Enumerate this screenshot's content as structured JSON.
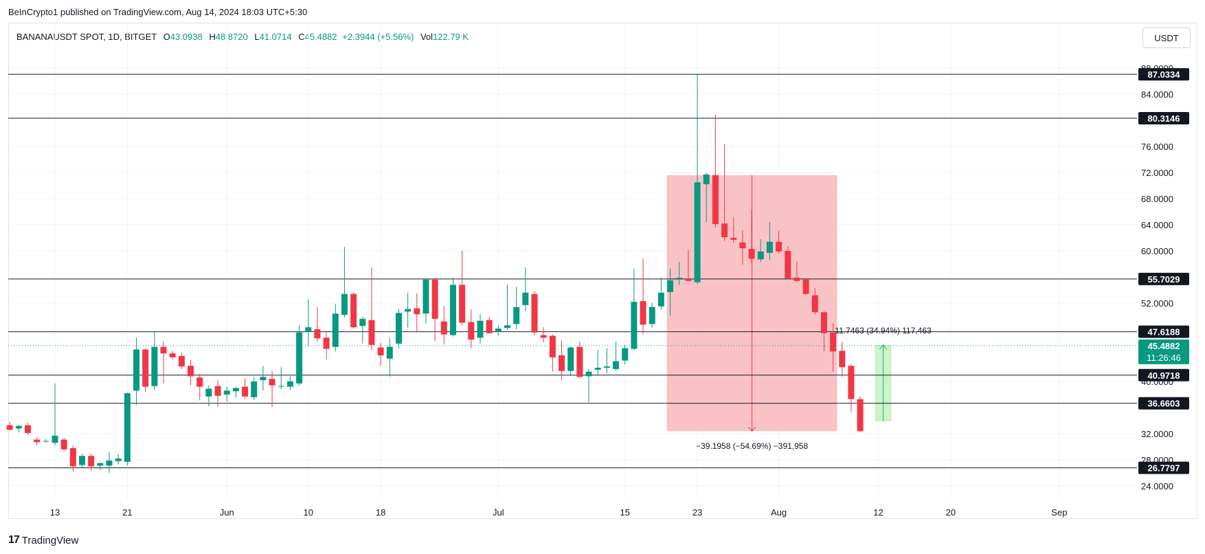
{
  "header": {
    "publisher": "BeInCrypto1 published on TradingView.com, Aug 14, 2024 18:03 UTC+5:30"
  },
  "legend": {
    "symbol": "BANANAUSDT SPOT, 1D, BITGET",
    "open_label": "O",
    "open": "43.0938",
    "high_label": "H",
    "high": "48.8720",
    "low_label": "L",
    "low": "41.0714",
    "close_label": "C",
    "close": "45.4882",
    "change": "+2.3944 (+5.56%)",
    "vol_label": "Vol",
    "vol": "122.79 K"
  },
  "currency_button": "USDT",
  "branding": {
    "logo": "17",
    "name": "TradingView"
  },
  "colors": {
    "up": "#089981",
    "down": "#f23645",
    "grid": "#f0f3fa",
    "level": "#131722",
    "short_zone": "#f7a9ae",
    "long_zone": "#b9f0b4"
  },
  "chart_data": {
    "type": "candlestick",
    "ylim": [
      22,
      90
    ],
    "y_ticks": [
      {
        "v": 88.0,
        "label": "88.0000"
      },
      {
        "v": 84,
        "label": "84.0000"
      },
      {
        "v": 76,
        "label": "76.0000"
      },
      {
        "v": 72,
        "label": "72.0000"
      },
      {
        "v": 68,
        "label": "68.0000"
      },
      {
        "v": 64,
        "label": "64.0000"
      },
      {
        "v": 60,
        "label": "60.0000"
      },
      {
        "v": 52,
        "label": "52.0000"
      },
      {
        "v": 40,
        "label": "40.0000"
      },
      {
        "v": 32,
        "label": "32.0000"
      },
      {
        "v": 28,
        "label": "28.0000"
      },
      {
        "v": 24,
        "label": "24.0000"
      }
    ],
    "x_ticks": [
      {
        "date": "2024-05-13",
        "label": "13"
      },
      {
        "date": "2024-05-21",
        "label": "21"
      },
      {
        "date": "2024-06-01",
        "label": "Jun"
      },
      {
        "date": "2024-06-10",
        "label": "10"
      },
      {
        "date": "2024-06-18",
        "label": "18"
      },
      {
        "date": "2024-07-01",
        "label": "Jul"
      },
      {
        "date": "2024-07-15",
        "label": "15"
      },
      {
        "date": "2024-07-23",
        "label": "23"
      },
      {
        "date": "2024-08-01",
        "label": "Aug"
      },
      {
        "date": "2024-08-12",
        "label": "12"
      },
      {
        "date": "2024-08-20",
        "label": "20"
      },
      {
        "date": "2024-09-01",
        "label": "Sep"
      }
    ],
    "levels": [
      {
        "price": 87.0334,
        "label": "87.0334"
      },
      {
        "price": 80.3146,
        "label": "80.3146"
      },
      {
        "price": 55.7029,
        "label": "55.7029"
      },
      {
        "price": 47.6188,
        "label": "47.6188"
      },
      {
        "price": 40.9718,
        "label": "40.9718"
      },
      {
        "price": 36.6603,
        "label": "36.6603"
      },
      {
        "price": 26.7797,
        "label": "26.7797"
      }
    ],
    "current_price": {
      "price": 45.4882,
      "label": "45.4882",
      "countdown": "11:26:46"
    },
    "short_measure": {
      "start": "2024-07-20",
      "end": "2024-08-07",
      "top": 71.6,
      "bottom": 32.4,
      "text": "−39.1958 (−54.69%) −391,958"
    },
    "long_measure": {
      "start": "2024-08-12",
      "end": "2024-08-13",
      "bottom": 33.9,
      "top": 45.6,
      "text": "11.7463 (34.94%) 117,463"
    },
    "candles": [
      {
        "d": "2024-05-08",
        "o": 33.3,
        "h": 33.8,
        "l": 32.5,
        "c": 32.6
      },
      {
        "d": "2024-05-09",
        "o": 32.8,
        "h": 33.3,
        "l": 32.2,
        "c": 33.2
      },
      {
        "d": "2024-05-10",
        "o": 33.3,
        "h": 33.7,
        "l": 31.8,
        "c": 32.1
      },
      {
        "d": "2024-05-11",
        "o": 31.1,
        "h": 31.5,
        "l": 30.2,
        "c": 30.7
      },
      {
        "d": "2024-05-12",
        "o": 30.8,
        "h": 31.2,
        "l": 30.6,
        "c": 30.9
      },
      {
        "d": "2024-05-13",
        "o": 30.6,
        "h": 39.7,
        "l": 30.2,
        "c": 31.7
      },
      {
        "d": "2024-05-14",
        "o": 31.1,
        "h": 31.3,
        "l": 29.3,
        "c": 29.6
      },
      {
        "d": "2024-05-15",
        "o": 29.8,
        "h": 30.2,
        "l": 26.2,
        "c": 27.0
      },
      {
        "d": "2024-05-16",
        "o": 27.2,
        "h": 28.9,
        "l": 26.8,
        "c": 28.6
      },
      {
        "d": "2024-05-17",
        "o": 28.6,
        "h": 28.9,
        "l": 26.3,
        "c": 27.0
      },
      {
        "d": "2024-05-18",
        "o": 27.1,
        "h": 27.6,
        "l": 26.4,
        "c": 27.5
      },
      {
        "d": "2024-05-19",
        "o": 27.1,
        "h": 29.2,
        "l": 26.0,
        "c": 27.9
      },
      {
        "d": "2024-05-20",
        "o": 27.8,
        "h": 28.9,
        "l": 27.3,
        "c": 28.2
      },
      {
        "d": "2024-05-21",
        "o": 27.7,
        "h": 38.3,
        "l": 27.1,
        "c": 38.2
      },
      {
        "d": "2024-05-22",
        "o": 38.6,
        "h": 46.7,
        "l": 36.4,
        "c": 44.9
      },
      {
        "d": "2024-05-23",
        "o": 44.9,
        "h": 45.1,
        "l": 38.4,
        "c": 39.2
      },
      {
        "d": "2024-05-24",
        "o": 39.3,
        "h": 47.7,
        "l": 38.7,
        "c": 45.3
      },
      {
        "d": "2024-05-25",
        "o": 45.3,
        "h": 46.1,
        "l": 39.7,
        "c": 44.3
      },
      {
        "d": "2024-05-26",
        "o": 44.3,
        "h": 44.7,
        "l": 43.4,
        "c": 43.7
      },
      {
        "d": "2024-05-27",
        "o": 43.9,
        "h": 44.4,
        "l": 41.9,
        "c": 42.3
      },
      {
        "d": "2024-05-28",
        "o": 42.4,
        "h": 43.3,
        "l": 39.4,
        "c": 40.8
      },
      {
        "d": "2024-05-29",
        "o": 40.6,
        "h": 41.2,
        "l": 37.1,
        "c": 39.2
      },
      {
        "d": "2024-05-30",
        "o": 37.7,
        "h": 39.4,
        "l": 36.2,
        "c": 38.9
      },
      {
        "d": "2024-05-31",
        "o": 39.3,
        "h": 40.2,
        "l": 36.1,
        "c": 37.8
      },
      {
        "d": "2024-06-01",
        "o": 38.0,
        "h": 39.2,
        "l": 36.9,
        "c": 38.6
      },
      {
        "d": "2024-06-02",
        "o": 38.5,
        "h": 39.1,
        "l": 37.6,
        "c": 39.0
      },
      {
        "d": "2024-06-03",
        "o": 39.2,
        "h": 40.5,
        "l": 37.4,
        "c": 37.7
      },
      {
        "d": "2024-06-04",
        "o": 37.6,
        "h": 40.7,
        "l": 37.2,
        "c": 40.0
      },
      {
        "d": "2024-06-05",
        "o": 40.2,
        "h": 42.4,
        "l": 38.6,
        "c": 40.7
      },
      {
        "d": "2024-06-06",
        "o": 40.4,
        "h": 41.6,
        "l": 36.1,
        "c": 39.4
      },
      {
        "d": "2024-06-07",
        "o": 39.2,
        "h": 42.2,
        "l": 38.8,
        "c": 39.3
      },
      {
        "d": "2024-06-08",
        "o": 39.2,
        "h": 40.8,
        "l": 38.7,
        "c": 40.0
      },
      {
        "d": "2024-06-09",
        "o": 39.7,
        "h": 48.6,
        "l": 39.4,
        "c": 47.5
      },
      {
        "d": "2024-06-10",
        "o": 47.6,
        "h": 52.6,
        "l": 45.4,
        "c": 48.3
      },
      {
        "d": "2024-06-11",
        "o": 48.0,
        "h": 51.4,
        "l": 46.1,
        "c": 46.6
      },
      {
        "d": "2024-06-12",
        "o": 46.7,
        "h": 47.5,
        "l": 43.4,
        "c": 45.0
      },
      {
        "d": "2024-06-13",
        "o": 45.3,
        "h": 51.9,
        "l": 44.6,
        "c": 50.4
      },
      {
        "d": "2024-06-14",
        "o": 50.2,
        "h": 60.6,
        "l": 49.8,
        "c": 53.4
      },
      {
        "d": "2024-06-15",
        "o": 53.4,
        "h": 53.6,
        "l": 48.1,
        "c": 48.3
      },
      {
        "d": "2024-06-16",
        "o": 48.5,
        "h": 49.9,
        "l": 45.8,
        "c": 49.6
      },
      {
        "d": "2024-06-17",
        "o": 49.4,
        "h": 57.5,
        "l": 44.8,
        "c": 45.6
      },
      {
        "d": "2024-06-18",
        "o": 45.2,
        "h": 45.9,
        "l": 42.4,
        "c": 44.0
      },
      {
        "d": "2024-06-19",
        "o": 43.5,
        "h": 46.7,
        "l": 40.7,
        "c": 45.3
      },
      {
        "d": "2024-06-20",
        "o": 45.8,
        "h": 51.1,
        "l": 45.1,
        "c": 50.5
      },
      {
        "d": "2024-06-21",
        "o": 50.7,
        "h": 53.6,
        "l": 48.3,
        "c": 51.1
      },
      {
        "d": "2024-06-22",
        "o": 51.2,
        "h": 53.5,
        "l": 47.7,
        "c": 50.3
      },
      {
        "d": "2024-06-23",
        "o": 50.4,
        "h": 55.7,
        "l": 48.9,
        "c": 55.6
      },
      {
        "d": "2024-06-24",
        "o": 55.6,
        "h": 55.9,
        "l": 46.2,
        "c": 49.6
      },
      {
        "d": "2024-06-25",
        "o": 49.2,
        "h": 51.6,
        "l": 45.7,
        "c": 47.2
      },
      {
        "d": "2024-06-26",
        "o": 47.1,
        "h": 55.9,
        "l": 46.9,
        "c": 54.8
      },
      {
        "d": "2024-06-27",
        "o": 54.8,
        "h": 60.0,
        "l": 48.6,
        "c": 49.0
      },
      {
        "d": "2024-06-28",
        "o": 49.1,
        "h": 51.1,
        "l": 45.1,
        "c": 46.4
      },
      {
        "d": "2024-06-29",
        "o": 46.7,
        "h": 50.3,
        "l": 45.8,
        "c": 49.3
      },
      {
        "d": "2024-06-30",
        "o": 49.4,
        "h": 49.9,
        "l": 47.3,
        "c": 47.4
      },
      {
        "d": "2024-07-01",
        "o": 47.6,
        "h": 48.6,
        "l": 47.0,
        "c": 48.1
      },
      {
        "d": "2024-07-02",
        "o": 48.2,
        "h": 54.8,
        "l": 47.9,
        "c": 48.6
      },
      {
        "d": "2024-07-03",
        "o": 48.8,
        "h": 54.5,
        "l": 48.0,
        "c": 51.4
      },
      {
        "d": "2024-07-04",
        "o": 51.7,
        "h": 57.5,
        "l": 50.8,
        "c": 53.6
      },
      {
        "d": "2024-07-05",
        "o": 53.4,
        "h": 53.8,
        "l": 47.1,
        "c": 47.5
      },
      {
        "d": "2024-07-06",
        "o": 47.1,
        "h": 48.3,
        "l": 46.0,
        "c": 46.7
      },
      {
        "d": "2024-07-07",
        "o": 47.0,
        "h": 47.2,
        "l": 41.5,
        "c": 43.7
      },
      {
        "d": "2024-07-08",
        "o": 44.0,
        "h": 46.3,
        "l": 40.2,
        "c": 41.6
      },
      {
        "d": "2024-07-09",
        "o": 41.6,
        "h": 45.4,
        "l": 40.8,
        "c": 45.2
      },
      {
        "d": "2024-07-10",
        "o": 45.3,
        "h": 46.1,
        "l": 40.5,
        "c": 40.7
      },
      {
        "d": "2024-07-11",
        "o": 40.8,
        "h": 41.9,
        "l": 36.8,
        "c": 41.5
      },
      {
        "d": "2024-07-12",
        "o": 41.8,
        "h": 44.8,
        "l": 41.0,
        "c": 42.1
      },
      {
        "d": "2024-07-13",
        "o": 42.1,
        "h": 45.1,
        "l": 41.2,
        "c": 42.3
      },
      {
        "d": "2024-07-14",
        "o": 41.9,
        "h": 46.1,
        "l": 41.6,
        "c": 43.1
      },
      {
        "d": "2024-07-15",
        "o": 43.2,
        "h": 45.6,
        "l": 42.6,
        "c": 45.1
      },
      {
        "d": "2024-07-16",
        "o": 45.0,
        "h": 57.3,
        "l": 44.8,
        "c": 52.2
      },
      {
        "d": "2024-07-17",
        "o": 52.3,
        "h": 58.8,
        "l": 47.2,
        "c": 48.7
      },
      {
        "d": "2024-07-18",
        "o": 48.8,
        "h": 52.0,
        "l": 48.3,
        "c": 51.4
      },
      {
        "d": "2024-07-19",
        "o": 51.5,
        "h": 55.9,
        "l": 51.0,
        "c": 53.6
      },
      {
        "d": "2024-07-20",
        "o": 53.7,
        "h": 57.3,
        "l": 50.1,
        "c": 55.5
      },
      {
        "d": "2024-07-21",
        "o": 55.6,
        "h": 58.3,
        "l": 54.8,
        "c": 55.9
      },
      {
        "d": "2024-07-22",
        "o": 55.7,
        "h": 60.2,
        "l": 55.3,
        "c": 55.4
      },
      {
        "d": "2024-07-23",
        "o": 55.2,
        "h": 87.0,
        "l": 54.9,
        "c": 70.5
      },
      {
        "d": "2024-07-24",
        "o": 70.2,
        "h": 71.9,
        "l": 64.4,
        "c": 71.7
      },
      {
        "d": "2024-07-25",
        "o": 71.6,
        "h": 80.9,
        "l": 63.6,
        "c": 64.1
      },
      {
        "d": "2024-07-26",
        "o": 64.2,
        "h": 76.3,
        "l": 61.5,
        "c": 62.1
      },
      {
        "d": "2024-07-27",
        "o": 62.0,
        "h": 65.2,
        "l": 61.2,
        "c": 61.7
      },
      {
        "d": "2024-07-28",
        "o": 61.3,
        "h": 63.2,
        "l": 57.9,
        "c": 60.4
      },
      {
        "d": "2024-07-29",
        "o": 60.3,
        "h": 66.3,
        "l": 58.1,
        "c": 58.8
      },
      {
        "d": "2024-07-30",
        "o": 58.7,
        "h": 61.8,
        "l": 58.3,
        "c": 59.9
      },
      {
        "d": "2024-07-31",
        "o": 59.7,
        "h": 64.4,
        "l": 58.6,
        "c": 61.4
      },
      {
        "d": "2024-08-01",
        "o": 61.4,
        "h": 63.1,
        "l": 59.6,
        "c": 59.9
      },
      {
        "d": "2024-08-02",
        "o": 60.0,
        "h": 60.7,
        "l": 55.6,
        "c": 55.8
      },
      {
        "d": "2024-08-03",
        "o": 55.9,
        "h": 58.4,
        "l": 55.2,
        "c": 55.4
      },
      {
        "d": "2024-08-04",
        "o": 55.6,
        "h": 55.7,
        "l": 53.2,
        "c": 53.4
      },
      {
        "d": "2024-08-05",
        "o": 53.2,
        "h": 54.3,
        "l": 50.2,
        "c": 50.6
      },
      {
        "d": "2024-08-06",
        "o": 50.6,
        "h": 50.8,
        "l": 44.6,
        "c": 47.4
      },
      {
        "d": "2024-08-07",
        "o": 47.5,
        "h": 48.9,
        "l": 41.5,
        "c": 44.6
      },
      {
        "d": "2024-08-08",
        "o": 44.7,
        "h": 46.1,
        "l": 40.7,
        "c": 42.2
      },
      {
        "d": "2024-08-09",
        "o": 42.4,
        "h": 42.6,
        "l": 35.3,
        "c": 37.3
      },
      {
        "d": "2024-08-10",
        "o": 37.3,
        "h": 37.7,
        "l": 32.3,
        "c": 32.4
      }
    ]
  }
}
